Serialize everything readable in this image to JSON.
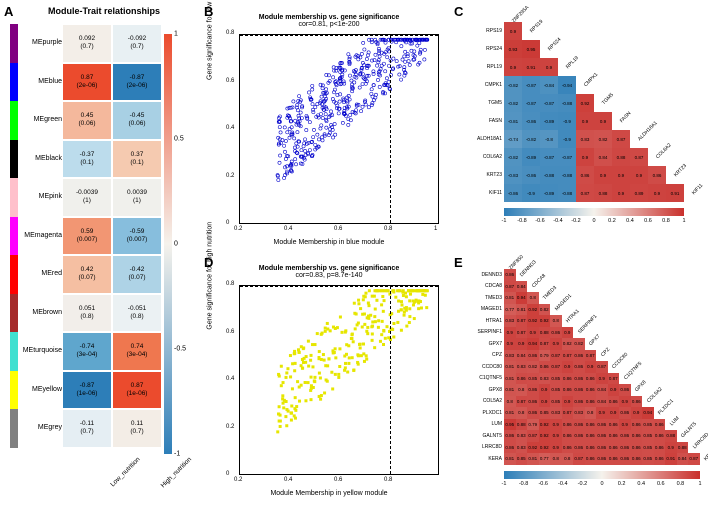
{
  "panelA": {
    "label": "A",
    "title": "Module-Trait relationships",
    "xlabels": [
      "Low_nutrition",
      "High_nutrition"
    ],
    "modules": [
      {
        "name": "MEpurple",
        "color": "#800080",
        "cells": [
          {
            "v": "0.092",
            "p": "(0.7)",
            "bg": "#f3eee8"
          },
          {
            "v": "-0.092",
            "p": "(0.7)",
            "bg": "#e8f0f3"
          }
        ]
      },
      {
        "name": "MEblue",
        "color": "#0000ff",
        "cells": [
          {
            "v": "0.87",
            "p": "(2e-06)",
            "bg": "#eb4b2d"
          },
          {
            "v": "-0.87",
            "p": "(2e-06)",
            "bg": "#2d7eb8"
          }
        ]
      },
      {
        "name": "MEgreen",
        "color": "#00ff00",
        "cells": [
          {
            "v": "0.45",
            "p": "(0.06)",
            "bg": "#f4b89c"
          },
          {
            "v": "-0.45",
            "p": "(0.06)",
            "bg": "#a8d0e4"
          }
        ]
      },
      {
        "name": "MEblack",
        "color": "#000000",
        "cells": [
          {
            "v": "-0.37",
            "p": "(0.1)",
            "bg": "#bcdcec"
          },
          {
            "v": "0.37",
            "p": "(0.1)",
            "bg": "#f5cab0"
          }
        ]
      },
      {
        "name": "MEpink",
        "color": "#ffc0cb",
        "cells": [
          {
            "v": "-0.0039",
            "p": "(1)",
            "bg": "#f0f0ec"
          },
          {
            "v": "0.0039",
            "p": "(1)",
            "bg": "#f0f0ec"
          }
        ]
      },
      {
        "name": "MEmagenta",
        "color": "#ff00ff",
        "cells": [
          {
            "v": "0.59",
            "p": "(0.007)",
            "bg": "#f29673"
          },
          {
            "v": "-0.59",
            "p": "(0.007)",
            "bg": "#87bedd"
          }
        ]
      },
      {
        "name": "MEred",
        "color": "#ff0000",
        "cells": [
          {
            "v": "0.42",
            "p": "(0.07)",
            "bg": "#f5bfa2"
          },
          {
            "v": "-0.42",
            "p": "(0.07)",
            "bg": "#aed3e6"
          }
        ]
      },
      {
        "name": "MEbrown",
        "color": "#a52a2a",
        "cells": [
          {
            "v": "0.051",
            "p": "(0.8)",
            "bg": "#f2eeea"
          },
          {
            "v": "-0.051",
            "p": "(0.8)",
            "bg": "#ebf1f3"
          }
        ]
      },
      {
        "name": "MEturquoise",
        "color": "#40e0d0",
        "cells": [
          {
            "v": "-0.74",
            "p": "(3e-04)",
            "bg": "#5fa6cd"
          },
          {
            "v": "0.74",
            "p": "(3e-04)",
            "bg": "#ef774f"
          }
        ]
      },
      {
        "name": "MEyellow",
        "color": "#ffff00",
        "cells": [
          {
            "v": "-0.87",
            "p": "(1e-06)",
            "bg": "#2d7eb8"
          },
          {
            "v": "0.87",
            "p": "(1e-06)",
            "bg": "#eb4b2d"
          }
        ]
      },
      {
        "name": "MEgrey",
        "color": "#808080",
        "cells": [
          {
            "v": "-0.11",
            "p": "(0.7)",
            "bg": "#e5eef3"
          },
          {
            "v": "0.11",
            "p": "(0.7)",
            "bg": "#f3ede6"
          }
        ]
      }
    ],
    "colorbar": {
      "ticks": [
        1,
        0.5,
        0,
        -0.5,
        -1
      ],
      "gradient": [
        "#eb4b2d",
        "#f5f2ec",
        "#2d7eb8"
      ]
    }
  },
  "panelB": {
    "label": "B",
    "title": "Module membership vs. gene significance",
    "subtitle": "cor=0.81, p<1e-200",
    "xlabel": "Module Membership in blue module",
    "ylabel": "Gene significance for low nutrition",
    "color": "#0000cc",
    "xlim": [
      0.2,
      1.0
    ],
    "ylim": [
      0.0,
      0.8
    ],
    "xticks": [
      0.2,
      0.4,
      0.6,
      0.8,
      1.0
    ],
    "yticks": [
      0.0,
      0.2,
      0.4,
      0.6,
      0.8
    ],
    "dash_x": 0.8,
    "dash_y": 0.8,
    "marker": "circle-open",
    "n_points": 500,
    "seed": 11
  },
  "panelC": {
    "label": "C",
    "genes": [
      "RPS19",
      "RPS24",
      "RPL19",
      "CMPK1",
      "TGM5",
      "FASN",
      "ALDH18A1",
      "COL6A2",
      "KRT23",
      "KIF11"
    ],
    "diag_top": "ZNF295A",
    "matrix": [
      [
        0.9
      ],
      [
        0.93,
        0.95
      ],
      [
        0.9,
        0.91,
        0.9
      ],
      [
        -0.82,
        -0.87,
        -0.84,
        -0.94
      ],
      [
        -0.82,
        -0.87,
        -0.87,
        -0.88,
        0.92
      ],
      [
        -0.81,
        -0.86,
        -0.89,
        -0.9,
        0.9,
        0.9
      ],
      [
        -0.74,
        -0.82,
        -0.8,
        -0.9,
        0.83,
        0.82,
        0.87
      ],
      [
        -0.82,
        -0.89,
        -0.87,
        -0.87,
        0.9,
        0.84,
        0.88,
        0.87
      ],
      [
        -0.83,
        -0.86,
        -0.88,
        -0.88,
        0.86,
        0.9,
        0.9,
        0.9,
        0.86
      ],
      [
        -0.86,
        -0.9,
        -0.89,
        -0.88,
        0.87,
        0.88,
        0.9,
        0.89,
        0.9,
        0.91
      ]
    ],
    "colorbar_ticks": [
      -1,
      -0.8,
      -0.6,
      -0.4,
      -0.2,
      0,
      0.2,
      0.4,
      0.6,
      0.8,
      1
    ]
  },
  "panelD": {
    "label": "D",
    "title": "Module membership vs. gene significance",
    "subtitle": "cor=0.83, p=8.7e-140",
    "xlabel": "Module Membership in yellow module",
    "ylabel": "Gene significance for high nutrition",
    "color": "#e6e600",
    "xlim": [
      0.2,
      1.0
    ],
    "ylim": [
      0.0,
      0.8
    ],
    "xticks": [
      0.2,
      0.4,
      0.6,
      0.8
    ],
    "yticks": [
      0.0,
      0.2,
      0.4,
      0.6,
      0.8
    ],
    "dash_x": 0.8,
    "dash_y": 0.8,
    "marker": "square-fill",
    "n_points": 300,
    "seed": 23
  },
  "panelE": {
    "label": "E",
    "genes": [
      "DENND3",
      "CDCA8",
      "TMED3",
      "MAGED1",
      "HTRA1",
      "SERPINF1",
      "GPX7",
      "CPZ",
      "CCDC80",
      "C1QTNF5",
      "GPX8",
      "COL5A2",
      "PLXDC1",
      "LUM",
      "GALNT5",
      "LRRC8D",
      "KERA"
    ],
    "diag_top": "ZNF850",
    "matrix": [
      [
        0.86
      ],
      [
        0.87,
        0.84
      ],
      [
        0.81,
        0.94,
        0.8
      ],
      [
        0.77,
        0.81,
        0.92,
        0.82
      ],
      [
        0.83,
        0.87,
        0.92,
        0.92,
        0.8
      ],
      [
        0.9,
        0.87,
        0.9,
        0.88,
        0.86,
        0.9
      ],
      [
        0.9,
        0.9,
        0.94,
        0.87,
        0.9,
        0.82,
        0.82
      ],
      [
        0.83,
        0.84,
        0.86,
        0.79,
        0.87,
        0.87,
        0.86,
        0.87
      ],
      [
        0.81,
        0.83,
        0.82,
        0.86,
        0.87,
        0.9,
        0.86,
        0.9,
        0.87
      ],
      [
        0.81,
        0.86,
        0.85,
        0.83,
        0.85,
        0.86,
        0.86,
        0.86,
        0.9,
        0.87
      ],
      [
        0.81,
        0.8,
        0.86,
        0.9,
        0.85,
        0.86,
        0.86,
        0.86,
        0.84,
        0.9,
        0.86
      ],
      [
        0.8,
        0.87,
        0.86,
        0.9,
        0.85,
        0.9,
        0.86,
        0.86,
        0.84,
        0.86,
        0.9,
        0.86
      ],
      [
        0.81,
        0.8,
        0.86,
        0.85,
        0.83,
        0.87,
        0.83,
        0.8,
        0.9,
        0.9,
        0.86,
        0.9,
        0.94
      ],
      [
        0.95,
        0.88,
        0.79,
        0.92,
        0.9,
        0.86,
        0.86,
        0.86,
        0.86,
        0.86,
        0.9,
        0.86,
        0.85,
        0.86
      ],
      [
        0.86,
        0.83,
        0.87,
        0.92,
        0.9,
        0.86,
        0.86,
        0.86,
        0.86,
        0.86,
        0.86,
        0.86,
        0.85,
        0.86,
        0.88
      ],
      [
        0.86,
        0.83,
        0.92,
        0.92,
        0.9,
        0.86,
        0.86,
        0.86,
        0.86,
        0.86,
        0.86,
        0.86,
        0.85,
        0.86,
        0.9,
        0.88
      ],
      [
        0.81,
        0.85,
        0.81,
        0.77,
        0.8,
        0.8,
        0.87,
        0.86,
        0.86,
        0.86,
        0.86,
        0.86,
        0.85,
        0.86,
        0.91,
        0.84,
        0.87
      ]
    ],
    "colorbar_ticks": [
      -1,
      -0.8,
      -0.6,
      -0.4,
      -0.2,
      0,
      0.2,
      0.4,
      0.6,
      0.8,
      1
    ]
  },
  "colors": {
    "heat_pos": "#c9302c",
    "heat_neg": "#2d7eb8",
    "heat_mid": "#f5f2ec"
  }
}
